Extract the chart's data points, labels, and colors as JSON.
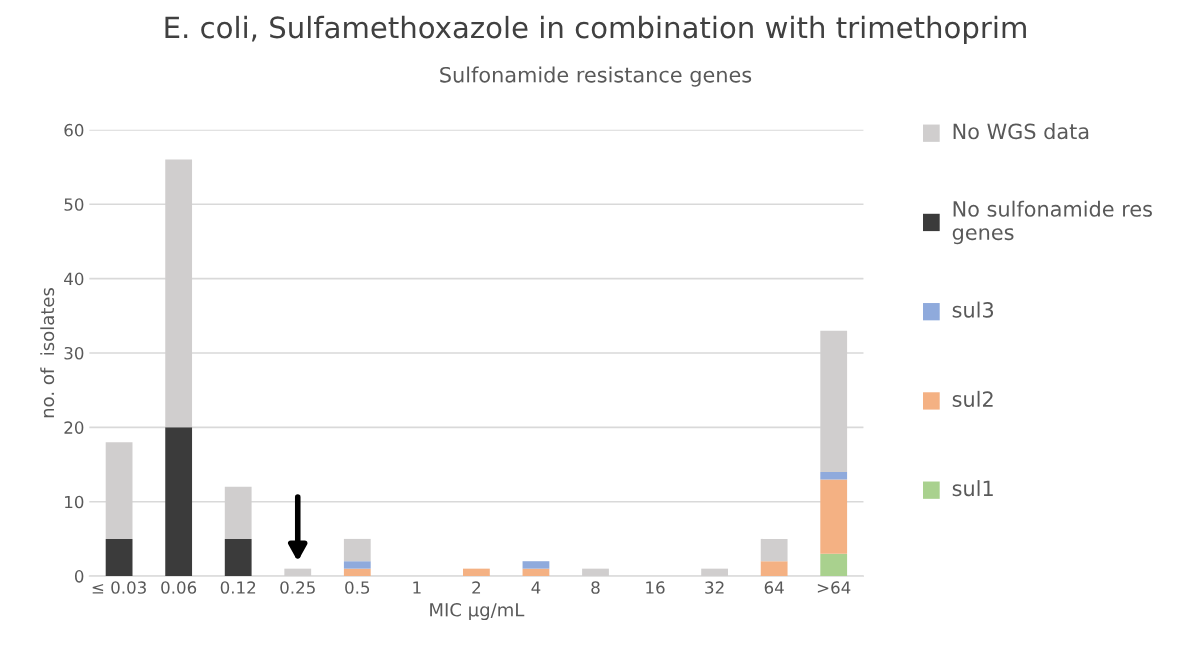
{
  "chart_data": {
    "type": "bar",
    "stacked": true,
    "title": "E. coli, Sulfamethoxazole in combination with trimethoprim",
    "subtitle": "Sulfonamide resistance genes",
    "xlabel": "MIC µg/mL",
    "ylabel": "no. of  isolates",
    "categories": [
      "≤ 0.03",
      "0.06",
      "0.12",
      "0.25",
      "0.5",
      "1",
      "2",
      "4",
      "8",
      "16",
      "32",
      "64",
      ">64"
    ],
    "series": [
      {
        "name": "sul1",
        "color": "#a9d18e",
        "values": [
          0,
          0,
          0,
          0,
          0,
          0,
          0,
          0,
          0,
          0,
          0,
          0,
          3
        ]
      },
      {
        "name": "sul2",
        "color": "#f4b183",
        "values": [
          0,
          0,
          0,
          0,
          1,
          0,
          1,
          1,
          0,
          0,
          0,
          2,
          10
        ]
      },
      {
        "name": "sul3",
        "color": "#8faadc",
        "values": [
          0,
          0,
          0,
          0,
          1,
          0,
          0,
          1,
          0,
          0,
          0,
          0,
          1
        ]
      },
      {
        "name": "No sulfonamide res genes",
        "color": "#3b3b3b",
        "values": [
          5,
          20,
          5,
          0,
          0,
          0,
          0,
          0,
          0,
          0,
          0,
          0,
          0
        ]
      },
      {
        "name": "No WGS data",
        "color": "#d0cece",
        "values": [
          13,
          36,
          7,
          1,
          3,
          0,
          0,
          0,
          1,
          0,
          1,
          3,
          19
        ]
      }
    ],
    "ylim": [
      0,
      60
    ],
    "yticks": [
      0,
      10,
      20,
      30,
      40,
      50,
      60
    ],
    "grid": "y",
    "legend": "right"
  }
}
